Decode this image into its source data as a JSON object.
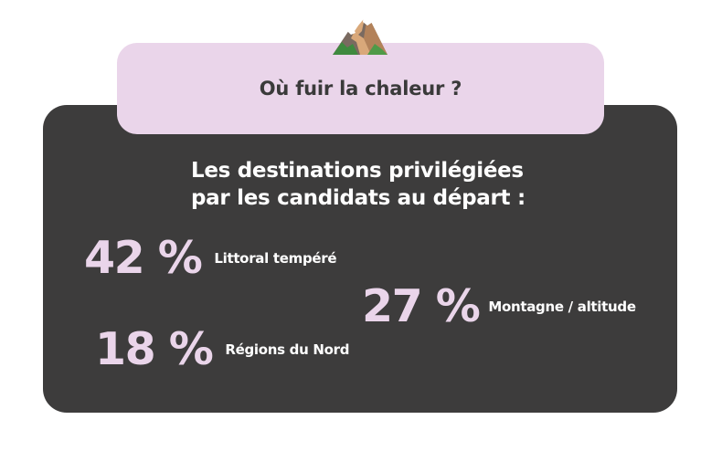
{
  "header": {
    "icon": "mountain-icon",
    "title": "Où fuir la chaleur ?"
  },
  "main": {
    "subtitle_line1": "Les destinations privilégiées",
    "subtitle_line2": "par les candidats au départ :",
    "stats": [
      {
        "value": "42 %",
        "label": "Littoral tempéré"
      },
      {
        "value": "27 %",
        "label": "Montagne / altitude"
      },
      {
        "value": "18 %",
        "label": "Régions du Nord"
      }
    ]
  },
  "colors": {
    "card_dark": "#3d3c3c",
    "accent_pink": "#ead5ea",
    "title_text": "#3a3a3a",
    "white": "#ffffff"
  }
}
